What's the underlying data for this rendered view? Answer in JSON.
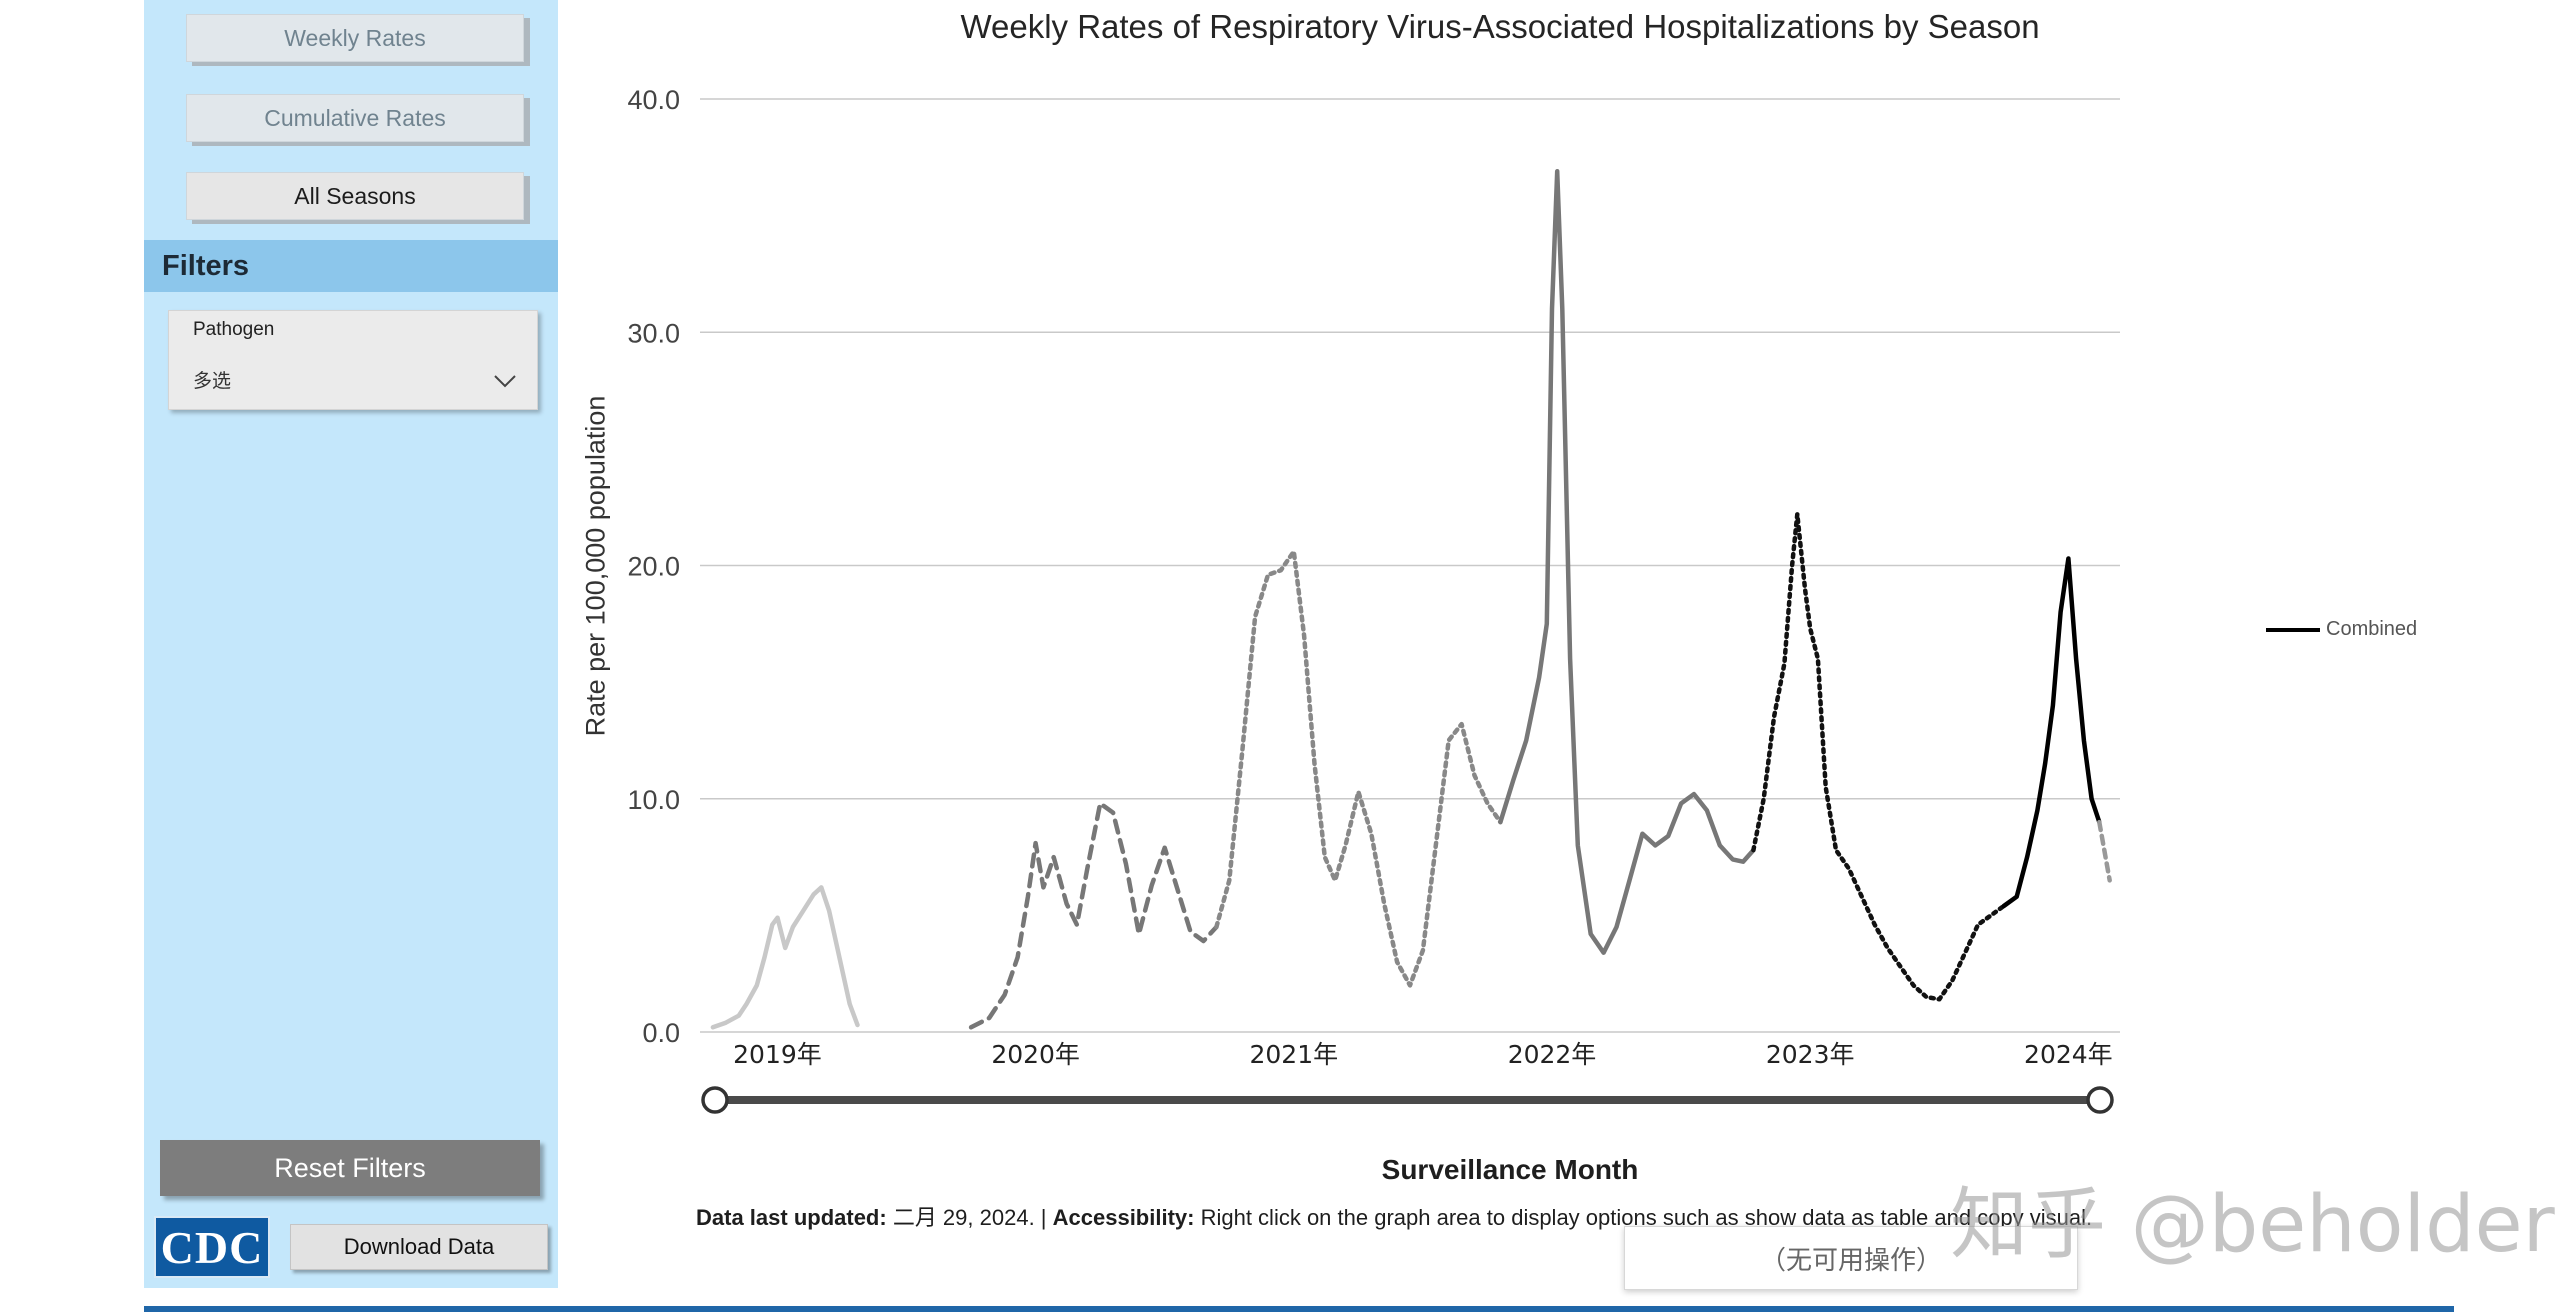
{
  "sidebar": {
    "nav": [
      {
        "label": "Weekly Rates"
      },
      {
        "label": "Cumulative Rates"
      },
      {
        "label": "All Seasons"
      }
    ],
    "filters_title": "Filters",
    "pathogen_label": "Pathogen",
    "pathogen_value": "多选",
    "reset_label": "Reset Filters",
    "logo_text": "CDC",
    "download_label": "Download Data"
  },
  "footnote": {
    "updated_label": "Data last updated:",
    "updated_value": " 二月 29, 2024. | ",
    "access_label": "Accessibility:",
    "access_value": " Right click on the graph area to display options such as show data as table and copy visual."
  },
  "tooltip": "（无可用操作）",
  "watermark": "知乎 @beholder",
  "colors": {
    "sidebar_bg": "#c4e7fb",
    "filters_bg": "#8cc6eb",
    "reset_bg": "#7d7d7d",
    "cdc_blue": "#0f5aa1",
    "bottom_bar": "#1f66a8"
  },
  "icons": {
    "pathogen_dropdown": "chevron-down-icon",
    "slider_handles": "circle-handle-icon"
  },
  "chart_data": {
    "type": "line",
    "title": "Weekly Rates of Respiratory Virus-Associated Hospitalizations by Season",
    "xlabel": "Surveillance Month",
    "ylabel": "Rate per 100,000 population",
    "ylim": [
      0,
      40
    ],
    "y_ticks": [
      "0.0",
      "10.0",
      "20.0",
      "30.0",
      "40.0"
    ],
    "x_ticks": [
      "2019年",
      "2020年",
      "2021年",
      "2022年",
      "2023年",
      "2024年"
    ],
    "x_range": [
      2018.7,
      2024.2
    ],
    "grid": true,
    "legend_position": "right",
    "series": [
      {
        "name": "",
        "style": {
          "color": "#c8c8c8",
          "dash": "solid"
        },
        "points": [
          [
            2018.75,
            0.2
          ],
          [
            2018.8,
            0.4
          ],
          [
            2018.85,
            0.7
          ],
          [
            2018.88,
            1.2
          ],
          [
            2018.92,
            2.0
          ],
          [
            2018.95,
            3.2
          ],
          [
            2018.98,
            4.6
          ],
          [
            2019.0,
            4.9
          ],
          [
            2019.03,
            3.6
          ],
          [
            2019.06,
            4.5
          ],
          [
            2019.1,
            5.2
          ],
          [
            2019.14,
            5.9
          ],
          [
            2019.17,
            6.2
          ],
          [
            2019.2,
            5.2
          ],
          [
            2019.24,
            3.2
          ],
          [
            2019.28,
            1.2
          ],
          [
            2019.31,
            0.3
          ]
        ]
      },
      {
        "name": "",
        "style": {
          "color": "#777777",
          "dash": "12,8"
        },
        "points": [
          [
            2019.75,
            0.2
          ],
          [
            2019.82,
            0.6
          ],
          [
            2019.88,
            1.6
          ],
          [
            2019.93,
            3.2
          ],
          [
            2019.97,
            5.8
          ],
          [
            2020.0,
            8.1
          ],
          [
            2020.03,
            6.2
          ],
          [
            2020.07,
            7.5
          ],
          [
            2020.12,
            5.5
          ],
          [
            2020.16,
            4.6
          ],
          [
            2020.2,
            7.0
          ],
          [
            2020.25,
            9.8
          ],
          [
            2020.3,
            9.4
          ],
          [
            2020.35,
            7.2
          ],
          [
            2020.4,
            4.2
          ],
          [
            2020.45,
            6.3
          ],
          [
            2020.5,
            7.9
          ],
          [
            2020.55,
            6.1
          ],
          [
            2020.6,
            4.3
          ],
          [
            2020.65,
            3.9
          ],
          [
            2020.7,
            4.5
          ]
        ]
      },
      {
        "name": "",
        "style": {
          "color": "#888888",
          "dash": "4,5"
        },
        "points": [
          [
            2020.7,
            4.5
          ],
          [
            2020.75,
            6.5
          ],
          [
            2020.8,
            12.0
          ],
          [
            2020.85,
            17.8
          ],
          [
            2020.9,
            19.6
          ],
          [
            2020.95,
            19.8
          ],
          [
            2021.0,
            20.6
          ],
          [
            2021.04,
            17.0
          ],
          [
            2021.08,
            11.5
          ],
          [
            2021.12,
            7.5
          ],
          [
            2021.16,
            6.5
          ],
          [
            2021.2,
            8.0
          ],
          [
            2021.25,
            10.3
          ],
          [
            2021.3,
            8.5
          ],
          [
            2021.35,
            5.5
          ],
          [
            2021.4,
            3.0
          ],
          [
            2021.45,
            2.0
          ],
          [
            2021.5,
            3.5
          ],
          [
            2021.55,
            8.0
          ],
          [
            2021.6,
            12.5
          ],
          [
            2021.65,
            13.2
          ],
          [
            2021.7,
            11.0
          ],
          [
            2021.75,
            9.8
          ],
          [
            2021.8,
            9.0
          ]
        ]
      },
      {
        "name": "",
        "style": {
          "color": "#777777",
          "dash": "solid"
        },
        "points": [
          [
            2021.8,
            9.0
          ],
          [
            2021.85,
            10.8
          ],
          [
            2021.9,
            12.5
          ],
          [
            2021.95,
            15.2
          ],
          [
            2021.98,
            17.5
          ],
          [
            2022.0,
            31.0
          ],
          [
            2022.02,
            36.9
          ],
          [
            2022.04,
            31.0
          ],
          [
            2022.07,
            16.0
          ],
          [
            2022.1,
            8.0
          ],
          [
            2022.15,
            4.2
          ],
          [
            2022.2,
            3.4
          ],
          [
            2022.25,
            4.5
          ],
          [
            2022.3,
            6.5
          ],
          [
            2022.35,
            8.5
          ],
          [
            2022.4,
            8.0
          ],
          [
            2022.45,
            8.4
          ],
          [
            2022.5,
            9.8
          ],
          [
            2022.55,
            10.2
          ],
          [
            2022.6,
            9.5
          ],
          [
            2022.65,
            8.0
          ],
          [
            2022.7,
            7.4
          ],
          [
            2022.74,
            7.3
          ],
          [
            2022.78,
            7.8
          ]
        ]
      },
      {
        "name": "",
        "style": {
          "color": "#111111",
          "dash": "3,5"
        },
        "points": [
          [
            2022.78,
            7.8
          ],
          [
            2022.82,
            10.0
          ],
          [
            2022.86,
            13.5
          ],
          [
            2022.9,
            15.8
          ],
          [
            2022.93,
            20.0
          ],
          [
            2022.95,
            22.2
          ],
          [
            2022.98,
            19.0
          ],
          [
            2023.0,
            17.3
          ],
          [
            2023.03,
            16.0
          ],
          [
            2023.06,
            10.5
          ],
          [
            2023.1,
            7.8
          ],
          [
            2023.15,
            7.0
          ],
          [
            2023.2,
            5.8
          ],
          [
            2023.25,
            4.6
          ],
          [
            2023.3,
            3.6
          ],
          [
            2023.35,
            2.8
          ],
          [
            2023.4,
            2.0
          ],
          [
            2023.45,
            1.5
          ],
          [
            2023.5,
            1.4
          ],
          [
            2023.55,
            2.2
          ],
          [
            2023.6,
            3.4
          ],
          [
            2023.65,
            4.6
          ],
          [
            2023.7,
            5.0
          ],
          [
            2023.75,
            5.4
          ]
        ]
      },
      {
        "name": "Combined",
        "style": {
          "color": "#000000",
          "dash": "solid"
        },
        "points": [
          [
            2023.75,
            5.4
          ],
          [
            2023.8,
            5.8
          ],
          [
            2023.84,
            7.5
          ],
          [
            2023.88,
            9.5
          ],
          [
            2023.91,
            11.5
          ],
          [
            2023.94,
            14.0
          ],
          [
            2023.97,
            18.0
          ],
          [
            2024.0,
            20.3
          ],
          [
            2024.03,
            16.0
          ],
          [
            2024.06,
            12.5
          ],
          [
            2024.09,
            10.0
          ],
          [
            2024.12,
            9.0
          ]
        ]
      },
      {
        "name": "",
        "style": {
          "color": "#999999",
          "dash": "8,6"
        },
        "points": [
          [
            2024.12,
            9.0
          ],
          [
            2024.16,
            6.5
          ]
        ]
      }
    ]
  }
}
